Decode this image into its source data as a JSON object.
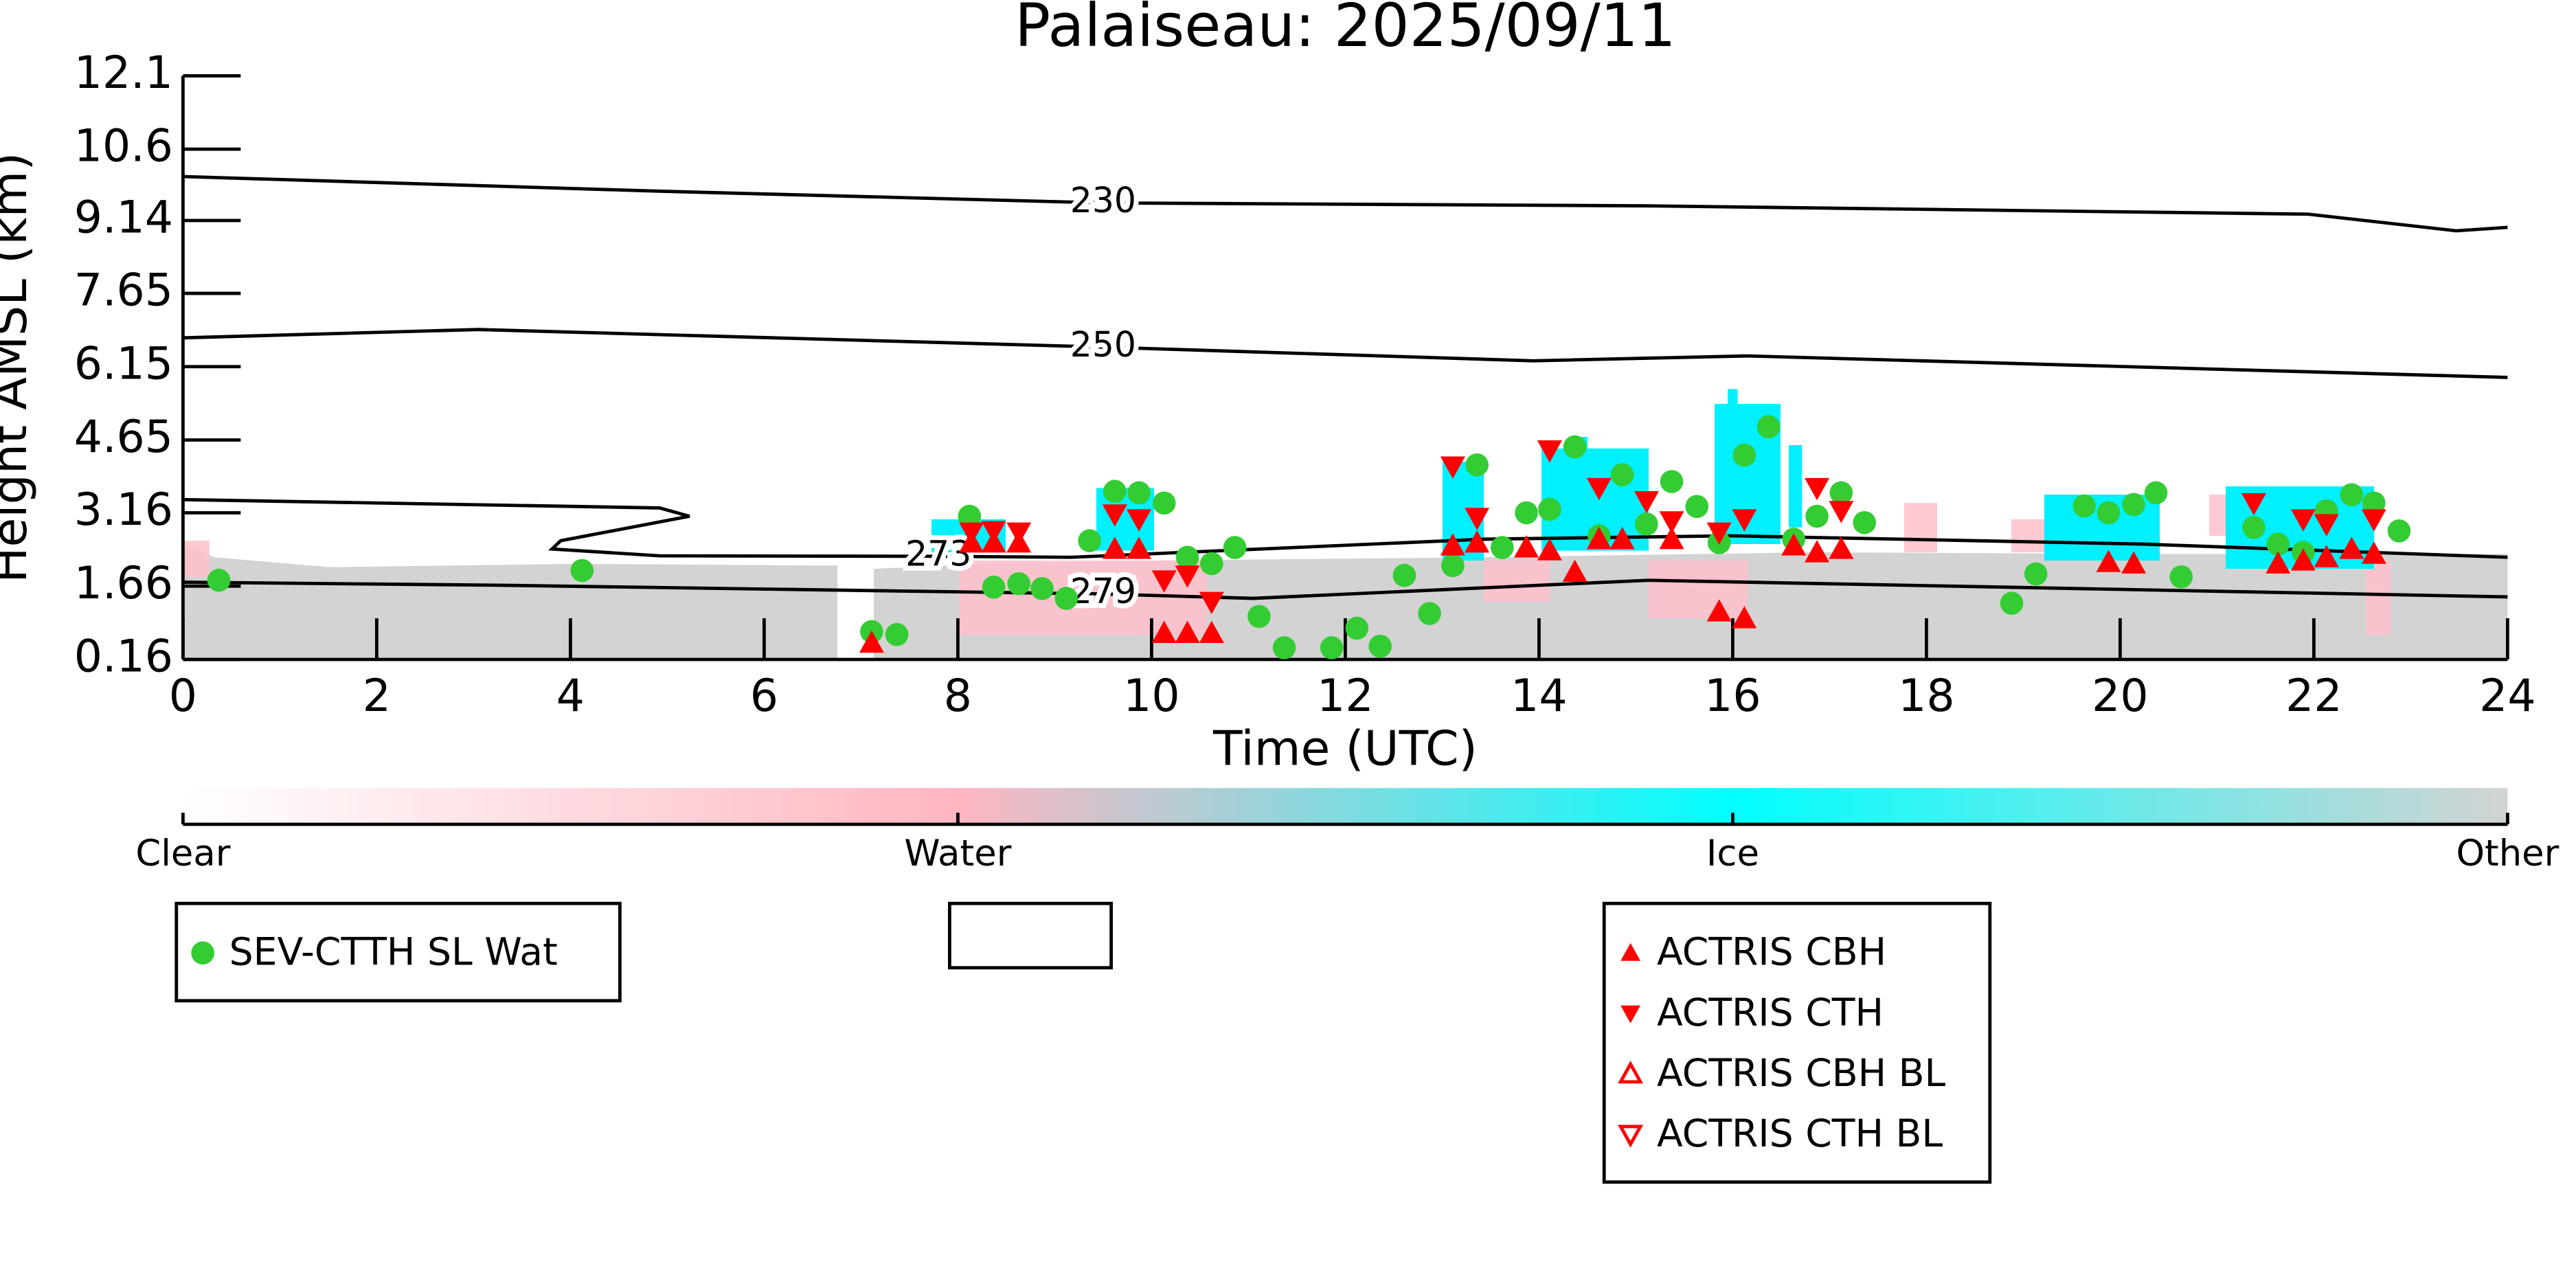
{
  "chart_data": {
    "type": "scatter",
    "title": "Palaiseau: 2025/09/11",
    "xlabel": "Time (UTC)",
    "ylabel": "Height AMSL (km)",
    "xlim": [
      0,
      24
    ],
    "xticks": [
      0,
      2,
      4,
      6,
      8,
      10,
      12,
      14,
      16,
      18,
      20,
      22,
      24
    ],
    "ylim": [
      0.16,
      12.1
    ],
    "yticks": [
      0.16,
      1.66,
      3.16,
      4.65,
      6.15,
      7.65,
      9.14,
      10.6,
      12.1
    ],
    "series": [
      {
        "name": "SEV-CTTH SL Wat",
        "color": "#33cc33",
        "marker": "circle",
        "filled": true,
        "x": [
          0.37,
          4.12,
          7.11,
          7.37,
          8.12,
          8.37,
          8.63,
          8.87,
          9.12,
          9.36,
          9.62,
          9.87,
          10.13,
          10.37,
          10.62,
          10.86,
          11.11,
          11.37,
          11.86,
          12.12,
          12.36,
          12.61,
          12.87,
          13.11,
          13.36,
          13.62,
          13.87,
          14.11,
          14.37,
          14.62,
          14.86,
          15.11,
          15.37,
          15.63,
          15.86,
          16.12,
          16.37,
          16.63,
          16.87,
          17.12,
          17.36,
          18.88,
          19.13,
          19.63,
          19.88,
          20.14,
          20.37,
          20.63,
          21.38,
          21.63,
          21.89,
          22.13,
          22.39,
          22.62,
          22.88
        ],
        "values": [
          1.78,
          1.98,
          0.73,
          0.67,
          3.09,
          1.64,
          1.71,
          1.61,
          1.41,
          2.59,
          3.6,
          3.57,
          3.36,
          2.25,
          2.12,
          2.45,
          1.04,
          0.4,
          0.4,
          0.8,
          0.43,
          1.88,
          1.1,
          2.08,
          4.14,
          2.45,
          3.16,
          3.23,
          4.51,
          2.69,
          3.94,
          2.93,
          3.8,
          3.29,
          2.55,
          4.34,
          4.92,
          2.62,
          3.09,
          3.57,
          2.96,
          1.31,
          1.91,
          3.3,
          3.16,
          3.33,
          3.57,
          1.85,
          2.86,
          2.52,
          2.35,
          3.2,
          3.53,
          3.36,
          2.79
        ]
      },
      {
        "name": "ACTRIS CBH",
        "color": "#ff0000",
        "marker": "triangle-up",
        "filled": true,
        "x": [
          7.11,
          8.14,
          8.37,
          8.63,
          9.62,
          9.87,
          10.13,
          10.37,
          10.62,
          13.11,
          13.36,
          13.87,
          14.11,
          14.37,
          14.62,
          14.86,
          15.37,
          15.86,
          16.12,
          16.63,
          16.87,
          17.12,
          19.88,
          20.14,
          21.63,
          21.89,
          22.13,
          22.39,
          22.62
        ],
        "values": [
          0.5,
          2.55,
          2.55,
          2.55,
          2.42,
          2.42,
          0.7,
          0.7,
          0.7,
          2.49,
          2.55,
          2.45,
          2.39,
          1.95,
          2.62,
          2.62,
          2.62,
          1.14,
          1.0,
          2.49,
          2.35,
          2.42,
          2.15,
          2.12,
          2.12,
          2.18,
          2.25,
          2.42,
          2.32
        ]
      },
      {
        "name": "ACTRIS CTH",
        "color": "#ff0000",
        "marker": "triangle-down",
        "filled": true,
        "x": [
          8.14,
          8.37,
          8.63,
          9.62,
          9.87,
          10.13,
          10.37,
          10.62,
          13.11,
          13.36,
          14.11,
          14.62,
          15.11,
          15.37,
          15.86,
          16.12,
          16.87,
          17.12,
          21.38,
          21.89,
          22.13,
          22.62
        ],
        "values": [
          2.76,
          2.79,
          2.76,
          3.13,
          3.03,
          1.78,
          1.88,
          1.34,
          4.11,
          3.06,
          4.44,
          3.67,
          3.4,
          2.99,
          2.76,
          3.03,
          3.67,
          3.2,
          3.36,
          3.03,
          2.93,
          3.03
        ]
      },
      {
        "name": "ACTRIS CBH BL",
        "color": "#ff0000",
        "marker": "triangle-up",
        "filled": false,
        "x": [],
        "values": []
      },
      {
        "name": "ACTRIS CTH BL",
        "color": "#ff0000",
        "marker": "triangle-down",
        "filled": false,
        "x": [],
        "values": []
      }
    ],
    "contours": [
      {
        "label": 230,
        "x": [
          0,
          4.92,
          9.5,
          15.13,
          21.94,
          23.47,
          24
        ],
        "values": [
          10.04,
          9.74,
          9.5,
          9.44,
          9.27,
          8.93,
          9.0
        ]
      },
      {
        "label": 250,
        "x": [
          0,
          3.05,
          9.5,
          13.94,
          16.15,
          24
        ],
        "values": [
          6.74,
          6.91,
          6.55,
          6.27,
          6.37,
          5.93
        ]
      },
      {
        "label": 273,
        "x": [
          0,
          4.92,
          5.23,
          3.9,
          3.81,
          4.92,
          7.8,
          9.17,
          13.43,
          15.98,
          20.24,
          24
        ],
        "values": [
          3.43,
          3.26,
          3.09,
          2.59,
          2.42,
          2.28,
          2.27,
          2.25,
          2.62,
          2.69,
          2.52,
          2.25
        ]
      },
      {
        "label": 279,
        "x": [
          0,
          3.22,
          9.5,
          11.05,
          15.13,
          24
        ],
        "values": [
          1.74,
          1.68,
          1.5,
          1.41,
          1.78,
          1.44
        ]
      }
    ],
    "colorbar": {
      "labels": [
        "Clear",
        "Water",
        "Ice",
        "Other"
      ],
      "colors": [
        "#ffffff",
        "#ffb6c1",
        "#00ffff",
        "#d3d3d3"
      ]
    }
  }
}
